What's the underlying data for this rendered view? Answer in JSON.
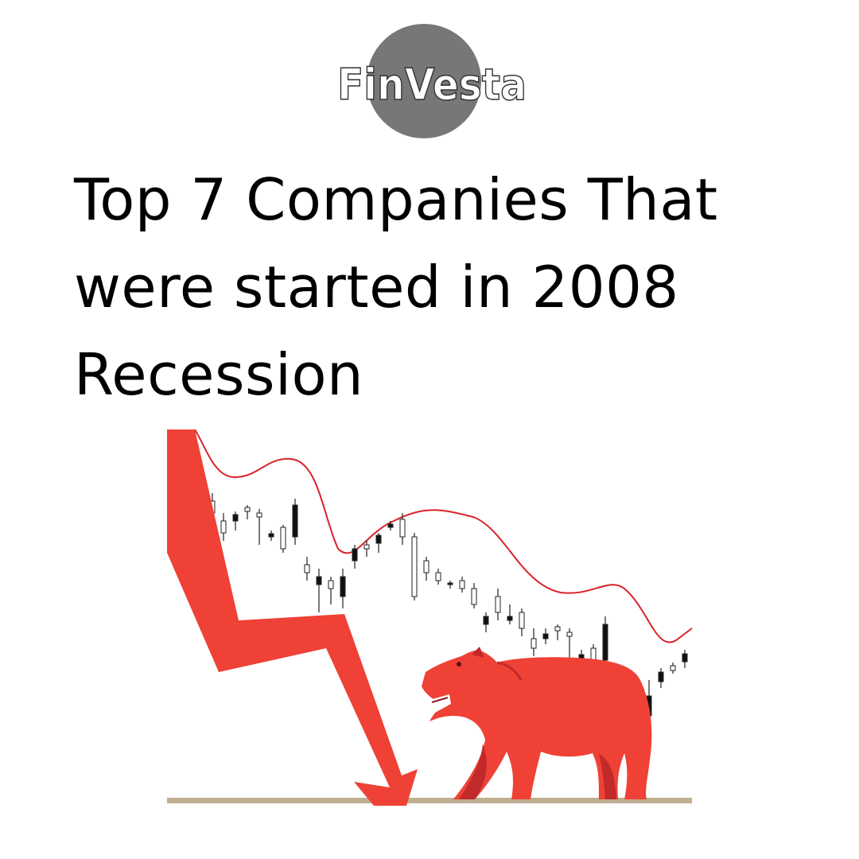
{
  "logo": {
    "text": "FinVesta",
    "circle_color": "#777777"
  },
  "headline": {
    "line1": "Top 7 Companies That",
    "line2": "were started in 2008",
    "line3": "Recession"
  },
  "illustration": {
    "arrow_color": "#ef4136",
    "bear_color": "#ef4136",
    "curve_color": "#d8232a",
    "ground_color": "#bfae90"
  }
}
